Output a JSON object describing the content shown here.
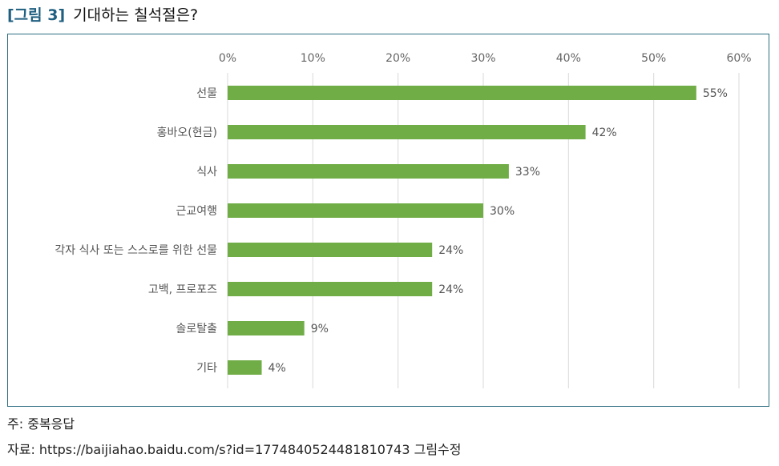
{
  "figure": {
    "label": "[그림 3]",
    "title": "기대하는 칠석절은?"
  },
  "chart_data": {
    "type": "bar",
    "orientation": "horizontal",
    "categories": [
      "선물",
      "홍바오(현금)",
      "식사",
      "근교여행",
      "각자 식사 또는 스스로를 위한 선물",
      "고백, 프로포즈",
      "솔로탈출",
      "기타"
    ],
    "values": [
      55,
      42,
      33,
      30,
      24,
      24,
      9,
      4
    ],
    "value_labels": [
      "55%",
      "42%",
      "33%",
      "30%",
      "24%",
      "24%",
      "9%",
      "4%"
    ],
    "xticks": [
      "0%",
      "10%",
      "20%",
      "30%",
      "40%",
      "50%",
      "60%"
    ],
    "xlim": [
      0,
      60
    ],
    "grid": true,
    "bar_color": "#70ad47"
  },
  "footer": {
    "note": "주: 중복응답",
    "source": "자료: https://baijiahao.baidu.com/s?id=1774840524481810743 그림수정"
  }
}
